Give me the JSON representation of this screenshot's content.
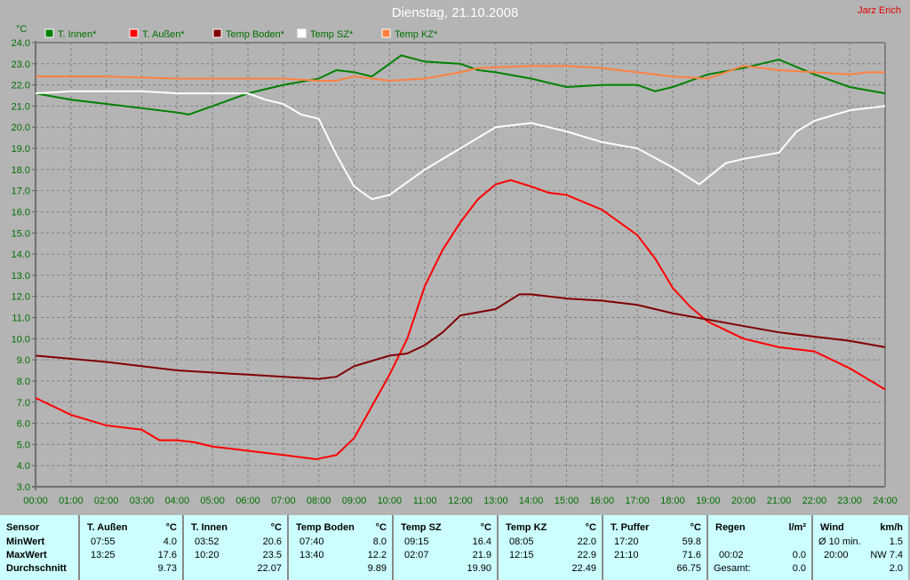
{
  "header": {
    "title": "Dienstag, 21.10.2008",
    "author": "Jarz Erich"
  },
  "chart_data": {
    "type": "line",
    "title": "Dienstag, 21.10.2008",
    "ylabel": "°C",
    "ylim": [
      3.0,
      24.0
    ],
    "xlim": [
      0,
      24
    ],
    "yticks": [
      "3.0",
      "4.0",
      "5.0",
      "6.0",
      "7.0",
      "8.0",
      "9.0",
      "10.0",
      "11.0",
      "12.0",
      "13.0",
      "14.0",
      "15.0",
      "16.0",
      "17.0",
      "18.0",
      "19.0",
      "20.0",
      "21.0",
      "22.0",
      "23.0",
      "24.0"
    ],
    "xticks": [
      "00:00",
      "01:00",
      "02:00",
      "03:00",
      "04:00",
      "05:00",
      "06:00",
      "07:00",
      "08:00",
      "09:00",
      "10:00",
      "11:00",
      "12:00",
      "13:00",
      "14:00",
      "15:00",
      "16:00",
      "17:00",
      "18:00",
      "19:00",
      "20:00",
      "21:00",
      "22:00",
      "23:00",
      "24:00"
    ],
    "grid": true,
    "legend": "top",
    "series": [
      {
        "name": "T. Innen*",
        "color": "#008000",
        "x": [
          0,
          1,
          2,
          3,
          4,
          4.33,
          5,
          6,
          7,
          8,
          8.5,
          9,
          9.5,
          10,
          10.33,
          11,
          12,
          12.5,
          13,
          14,
          15,
          16,
          17,
          17.5,
          18,
          19,
          20,
          21,
          22,
          23,
          24
        ],
        "y": [
          21.6,
          21.3,
          21.1,
          20.9,
          20.7,
          20.6,
          21.0,
          21.6,
          22.0,
          22.3,
          22.7,
          22.6,
          22.4,
          23.0,
          23.4,
          23.1,
          23.0,
          22.7,
          22.6,
          22.3,
          21.9,
          22.0,
          22.0,
          21.7,
          21.9,
          22.5,
          22.8,
          23.2,
          22.5,
          21.9,
          21.6
        ]
      },
      {
        "name": "T. Außen*",
        "color": "#ff0000",
        "x": [
          0,
          1,
          2,
          3,
          3.5,
          4,
          4.5,
          5,
          6,
          7,
          7.92,
          8.5,
          9,
          9.5,
          10,
          10.5,
          11,
          11.5,
          12,
          12.5,
          13,
          13.42,
          14,
          14.5,
          15,
          16,
          17,
          17.5,
          18,
          18.5,
          19,
          20,
          21,
          22,
          23,
          24
        ],
        "y": [
          7.2,
          6.4,
          5.9,
          5.7,
          5.2,
          5.2,
          5.1,
          4.9,
          4.7,
          4.5,
          4.3,
          4.5,
          5.3,
          6.8,
          8.3,
          10.0,
          12.5,
          14.2,
          15.5,
          16.6,
          17.3,
          17.5,
          17.2,
          16.9,
          16.8,
          16.1,
          14.9,
          13.8,
          12.4,
          11.5,
          10.8,
          10.0,
          9.6,
          9.4,
          8.6,
          7.6
        ]
      },
      {
        "name": "Temp Boden*",
        "color": "#800000",
        "x": [
          0,
          2,
          4,
          6,
          8,
          8.5,
          9,
          10,
          10.5,
          11,
          11.5,
          12,
          13,
          13.67,
          14,
          15,
          16,
          17,
          18,
          19,
          20,
          21,
          22,
          23,
          24
        ],
        "y": [
          9.2,
          8.9,
          8.5,
          8.3,
          8.1,
          8.2,
          8.7,
          9.2,
          9.3,
          9.7,
          10.3,
          11.1,
          11.4,
          12.1,
          12.1,
          11.9,
          11.8,
          11.6,
          11.2,
          10.9,
          10.6,
          10.3,
          10.1,
          9.9,
          9.6
        ]
      },
      {
        "name": "Temp SZ*",
        "color": "#ffffff",
        "x": [
          0,
          1,
          2,
          3,
          4,
          5,
          6,
          6.5,
          7,
          7.5,
          8,
          8.5,
          9,
          9.5,
          10,
          11,
          12,
          13,
          14,
          15,
          16,
          17,
          18,
          18.75,
          19.5,
          20,
          21,
          21.5,
          22,
          23,
          24
        ],
        "y": [
          21.6,
          21.7,
          21.7,
          21.7,
          21.6,
          21.6,
          21.6,
          21.3,
          21.1,
          20.6,
          20.4,
          18.7,
          17.2,
          16.6,
          16.8,
          18.0,
          19.0,
          20.0,
          20.2,
          19.8,
          19.3,
          19.0,
          18.1,
          17.3,
          18.3,
          18.5,
          18.8,
          19.8,
          20.3,
          20.8,
          21.0
        ]
      },
      {
        "name": "Temp KZ*",
        "color": "#ff8040",
        "x": [
          0,
          2,
          4,
          6,
          7,
          8,
          8.5,
          9,
          10,
          11,
          12,
          12.5,
          14,
          15,
          16,
          17,
          18,
          19,
          19.5,
          20,
          21,
          22,
          23,
          23.5,
          24
        ],
        "y": [
          22.4,
          22.4,
          22.3,
          22.3,
          22.3,
          22.2,
          22.2,
          22.4,
          22.2,
          22.3,
          22.6,
          22.8,
          22.9,
          22.9,
          22.8,
          22.6,
          22.4,
          22.3,
          22.6,
          22.9,
          22.7,
          22.6,
          22.5,
          22.6,
          22.6
        ]
      }
    ]
  },
  "stats": {
    "sensor": {
      "label": "Sensor",
      "rows": [
        "MinWert",
        "MaxWert",
        "Durchschnitt"
      ]
    },
    "columns": [
      {
        "name": "T. Außen",
        "unit": "°C",
        "rows": [
          [
            "07:55",
            "4.0"
          ],
          [
            "13:25",
            "17.6"
          ],
          [
            "",
            "9.73"
          ]
        ]
      },
      {
        "name": "T. Innen",
        "unit": "°C",
        "rows": [
          [
            "03:52",
            "20.6"
          ],
          [
            "10:20",
            "23.5"
          ],
          [
            "",
            "22.07"
          ]
        ]
      },
      {
        "name": "Temp Boden",
        "unit": "°C",
        "rows": [
          [
            "07:40",
            "8.0"
          ],
          [
            "13:40",
            "12.2"
          ],
          [
            "",
            "9.89"
          ]
        ]
      },
      {
        "name": "Temp SZ",
        "unit": "°C",
        "rows": [
          [
            "09:15",
            "16.4"
          ],
          [
            "02:07",
            "21.9"
          ],
          [
            "",
            "19.90"
          ]
        ]
      },
      {
        "name": "Temp KZ",
        "unit": "°C",
        "rows": [
          [
            "08:05",
            "22.0"
          ],
          [
            "12:15",
            "22.9"
          ],
          [
            "",
            "22.49"
          ]
        ]
      },
      {
        "name": "T. Puffer",
        "unit": "°C",
        "rows": [
          [
            "17:20",
            "59.8"
          ],
          [
            "21:10",
            "71.6"
          ],
          [
            "",
            "66.75"
          ]
        ]
      },
      {
        "name": "Regen",
        "unit": "l/m²",
        "rows": [
          [
            "",
            ""
          ],
          [
            "00:02",
            "0.0"
          ],
          [
            "Gesamt:",
            "0.0"
          ]
        ]
      },
      {
        "name": "Wind",
        "unit": "km/h",
        "rows": [
          [
            "Ø 10 min.",
            "1.5"
          ],
          [
            "20:00",
            "NW 7.4"
          ],
          [
            "",
            "2.0"
          ]
        ]
      }
    ]
  }
}
